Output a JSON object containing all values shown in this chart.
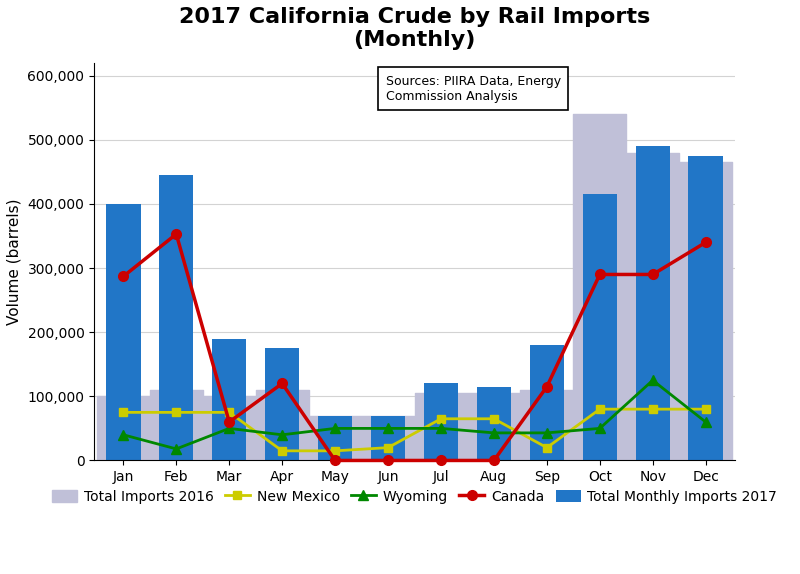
{
  "title": "2017 California Crude by Rail Imports\n(Monthly)",
  "xlabel": "",
  "ylabel": "Volume (barrels)",
  "months": [
    "Jan",
    "Feb",
    "Mar",
    "Apr",
    "May",
    "Jun",
    "Jul",
    "Aug",
    "Sep",
    "Oct",
    "Nov",
    "Dec"
  ],
  "total_2017": [
    400000,
    445000,
    190000,
    175000,
    70000,
    70000,
    120000,
    115000,
    180000,
    415000,
    490000,
    475000
  ],
  "total_2016": [
    100000,
    110000,
    100000,
    110000,
    70000,
    70000,
    105000,
    105000,
    110000,
    540000,
    480000,
    465000
  ],
  "new_mexico": [
    75000,
    75000,
    75000,
    15000,
    15000,
    20000,
    65000,
    65000,
    20000,
    80000,
    80000,
    80000
  ],
  "wyoming": [
    40000,
    18000,
    50000,
    40000,
    50000,
    50000,
    50000,
    43000,
    43000,
    50000,
    125000,
    60000
  ],
  "canada": [
    287000,
    353000,
    60000,
    120000,
    0,
    0,
    0,
    0,
    115000,
    290000,
    290000,
    340000
  ],
  "bar_color": "#2176c7",
  "area_color": "#c0c0d8",
  "new_mexico_color": "#cccc00",
  "wyoming_color": "#008800",
  "canada_color": "#cc0000",
  "annotation_text": "Sources: PIIRA Data, Energy\nCommission Analysis",
  "ylim": [
    0,
    620000
  ],
  "yticks": [
    0,
    100000,
    200000,
    300000,
    400000,
    500000,
    600000
  ],
  "title_fontsize": 16,
  "axis_label_fontsize": 11,
  "tick_fontsize": 10,
  "legend_fontsize": 10
}
